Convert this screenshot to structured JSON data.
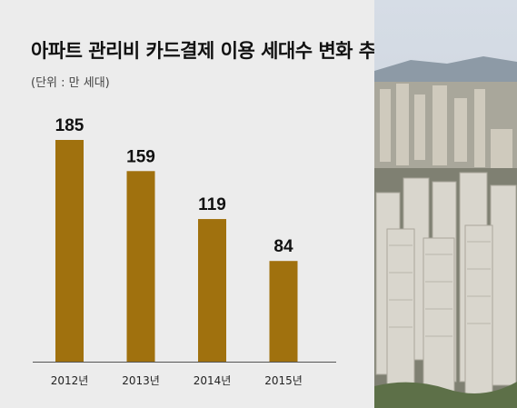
{
  "chart_data": {
    "type": "bar",
    "title": "아파트 관리비 카드결제 이용 세대수 변화 추이",
    "subtitle": "(단위 : 만 세대)",
    "categories": [
      "2012년",
      "2013년",
      "2014년",
      "2015년"
    ],
    "values": [
      185,
      159,
      119,
      84
    ],
    "ylim": [
      0,
      185
    ],
    "grid": false,
    "bar_color": "#a0710e",
    "xlabel": "",
    "ylabel": ""
  }
}
